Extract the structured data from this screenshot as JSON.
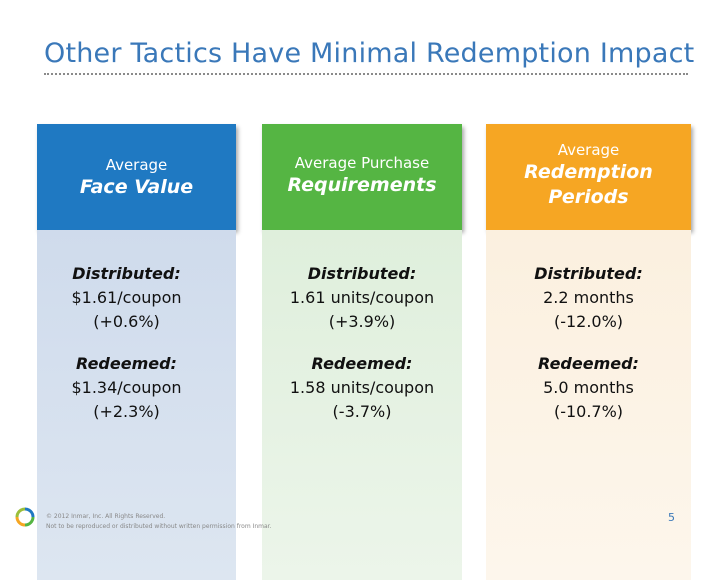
{
  "slide": {
    "title": "Other Tactics Have Minimal Redemption Impact",
    "page_number": "5"
  },
  "columns": [
    {
      "header_small": "Average",
      "header_big_lines": [
        "Face Value"
      ],
      "distributed_label": "Distributed:",
      "distributed_value": "$1.61/coupon",
      "distributed_change": "(+0.6%)",
      "redeemed_label": "Redeemed:",
      "redeemed_value": "$1.34/coupon",
      "redeemed_change": "(+2.3%)",
      "header_color": "#1f79c2"
    },
    {
      "header_small": "Average Purchase",
      "header_big_lines": [
        "Requirements"
      ],
      "distributed_label": "Distributed:",
      "distributed_value": "1.61 units/coupon",
      "distributed_change": "(+3.9%)",
      "redeemed_label": "Redeemed:",
      "redeemed_value": "1.58 units/coupon",
      "redeemed_change": "(-3.7%)",
      "header_color": "#55b543"
    },
    {
      "header_small": "Average",
      "header_big_lines": [
        "Redemption",
        "Periods"
      ],
      "distributed_label": "Distributed:",
      "distributed_value": "2.2 months",
      "distributed_change": "(-12.0%)",
      "redeemed_label": "Redeemed:",
      "redeemed_value": "5.0 months",
      "redeemed_change": "(-10.7%)",
      "header_color": "#f6a623"
    }
  ],
  "footer": {
    "copyright": "© 2012 Inmar, Inc. All Rights Reserved.",
    "notice": "Not to be reproduced or distributed without written permission from Inmar.",
    "logo_icon": "inmar-logo-icon"
  }
}
